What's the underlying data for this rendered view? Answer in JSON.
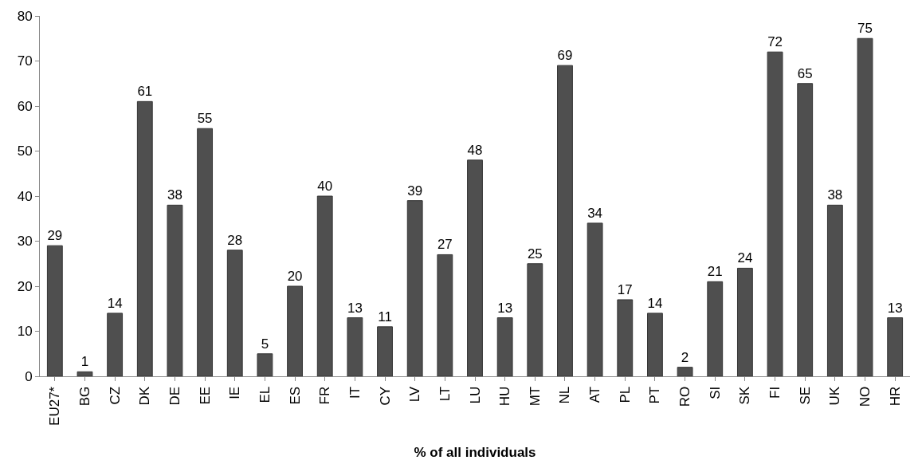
{
  "chart_data": {
    "type": "bar",
    "xlabel": "% of all individuals",
    "categories": [
      "EU27*",
      "BG",
      "CZ",
      "DK",
      "DE",
      "EE",
      "IE",
      "EL",
      "ES",
      "FR",
      "IT",
      "CY",
      "LV",
      "LT",
      "LU",
      "HU",
      "MT",
      "NL",
      "AT",
      "PL",
      "PT",
      "RO",
      "SI",
      "SK",
      "FI",
      "SE",
      "UK",
      "NO",
      "HR"
    ],
    "values": [
      29,
      1,
      14,
      61,
      38,
      55,
      28,
      5,
      20,
      40,
      13,
      11,
      39,
      27,
      48,
      13,
      25,
      69,
      34,
      17,
      14,
      2,
      21,
      24,
      72,
      65,
      38,
      75,
      13
    ],
    "color": "#4f4f4f",
    "ylim": [
      0,
      80
    ],
    "yticks": [
      0,
      10,
      20,
      30,
      40,
      50,
      60,
      70,
      80
    ],
    "grid": false,
    "data_labels": true
  }
}
